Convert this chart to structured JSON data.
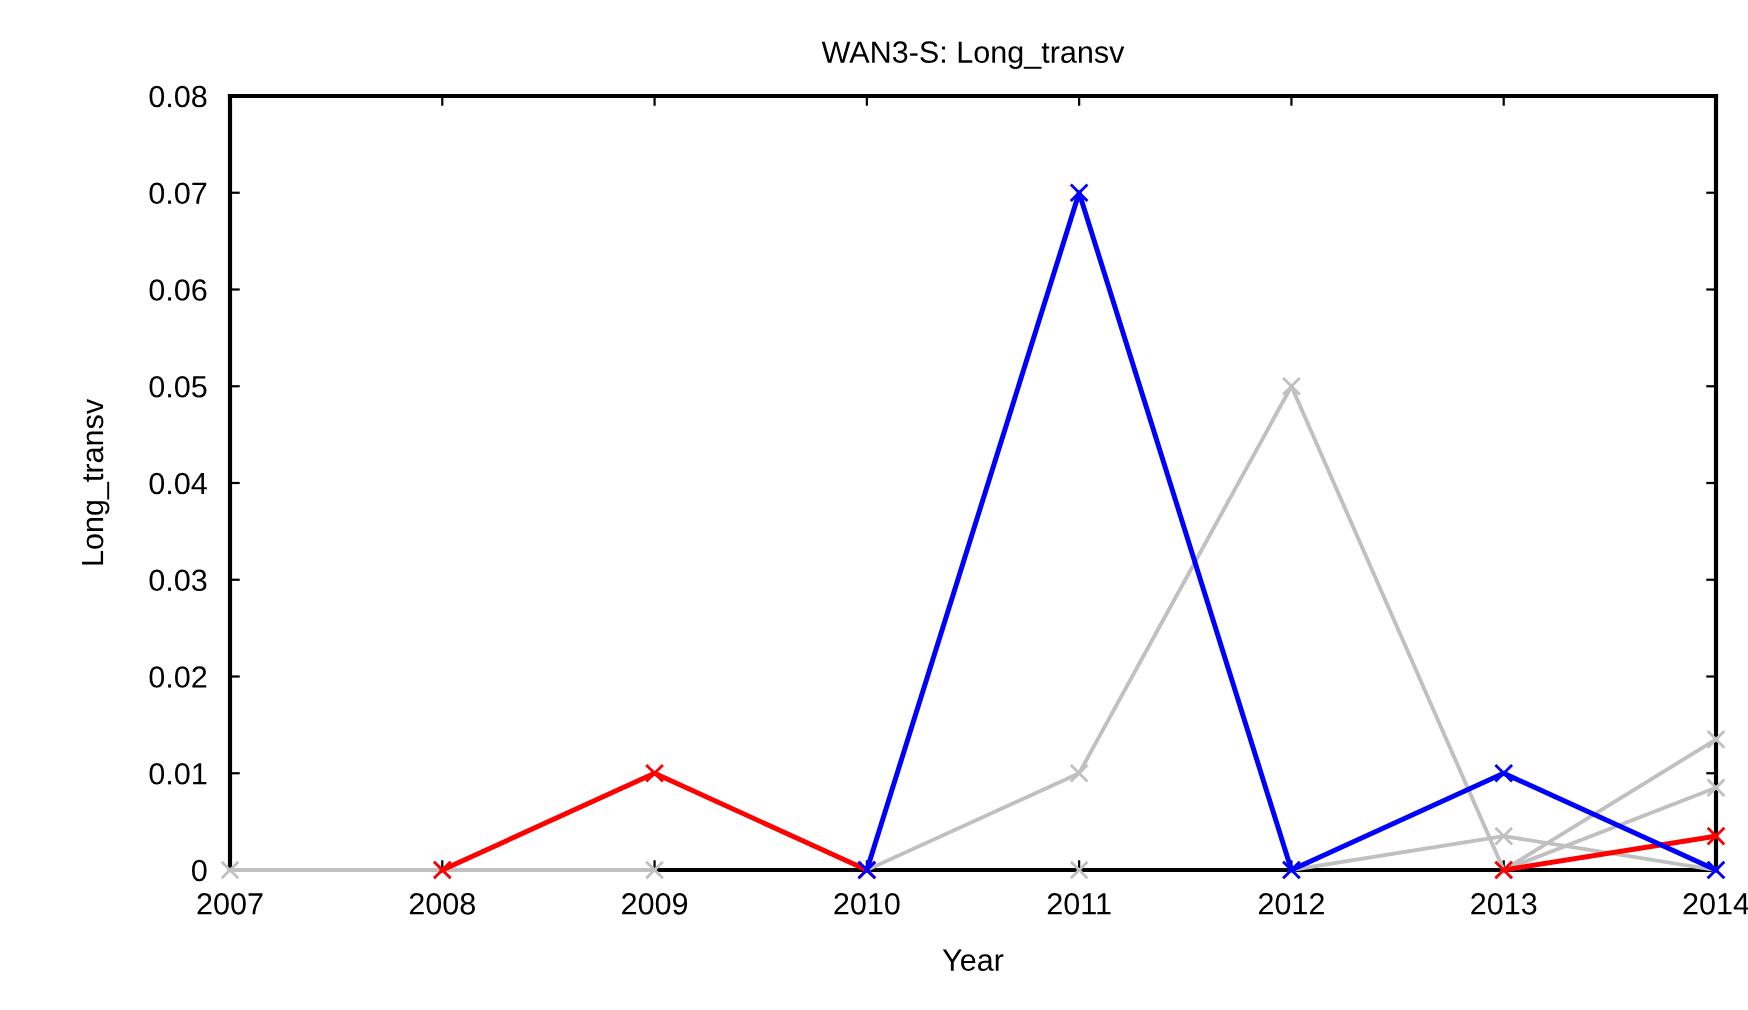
{
  "chart_data": {
    "type": "line",
    "title": "WAN3-S: Long_transv",
    "xlabel": "Year",
    "ylabel": "Long_transv",
    "x": [
      2007,
      2008,
      2009,
      2010,
      2011,
      2012,
      2013,
      2014
    ],
    "series": [
      {
        "color": "#c0c0c0",
        "values": [
          0,
          0,
          0,
          null,
          0,
          null,
          null,
          null
        ]
      },
      {
        "color": "#c0c0c0",
        "values": [
          null,
          null,
          null,
          0,
          0.01,
          0.05,
          0,
          0.0135
        ]
      },
      {
        "color": "#c0c0c0",
        "values": [
          null,
          null,
          null,
          null,
          null,
          0,
          0.0035,
          0
        ]
      },
      {
        "color": "#c0c0c0",
        "values": [
          null,
          null,
          null,
          null,
          null,
          null,
          0,
          0.0085
        ]
      },
      {
        "color": "#ff0000",
        "values": [
          null,
          0,
          0.01,
          0,
          null,
          null,
          0,
          0.0035
        ]
      },
      {
        "color": "#0000ff",
        "values": [
          null,
          null,
          null,
          0,
          0.07,
          0,
          0.01,
          0
        ]
      }
    ],
    "xlim": [
      2007,
      2014
    ],
    "xticks": [
      2007,
      2008,
      2009,
      2010,
      2011,
      2012,
      2013,
      2014
    ],
    "ylim": [
      0,
      0.08
    ],
    "yticks": [
      0,
      0.01,
      0.02,
      0.03,
      0.04,
      0.05,
      0.06,
      0.07,
      0.08
    ],
    "marker": "cross",
    "line_style": "solid",
    "grid": false,
    "legend": false
  }
}
